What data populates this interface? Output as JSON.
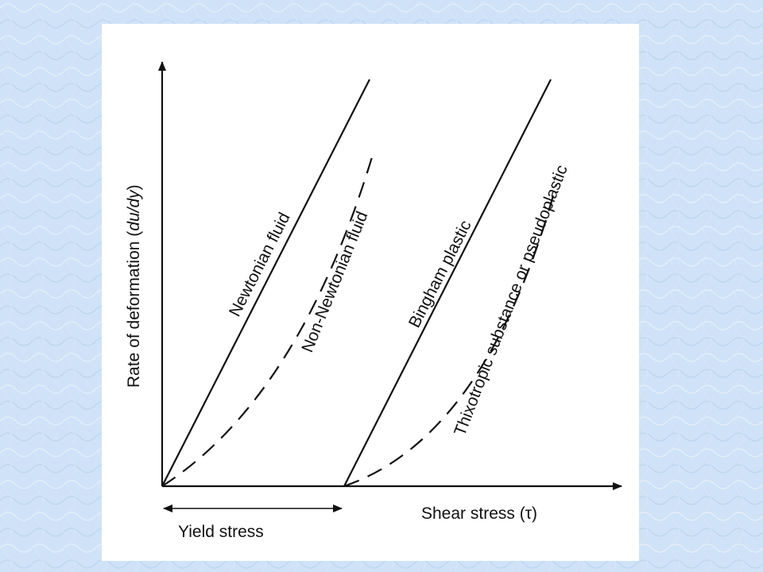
{
  "diagram": {
    "y_axis_label_prefix": "Rate of deformation (",
    "y_axis_label_var": "du/dy",
    "y_axis_label_suffix": ")",
    "x_axis_label": "Shear stress (τ)",
    "yield_label": "Yield stress",
    "curves": [
      {
        "name": "Newtonian fluid",
        "style": "solid"
      },
      {
        "name": "Non-Newtonian fluid",
        "style": "dashed"
      },
      {
        "name": "Bingham plastic",
        "style": "solid"
      },
      {
        "name": "Thixotropic substance or pseudoplastic",
        "style": "dashed"
      }
    ],
    "colors": {
      "background": "#cfe2f7",
      "panel": "#ffffff",
      "ink": "#111111"
    }
  }
}
